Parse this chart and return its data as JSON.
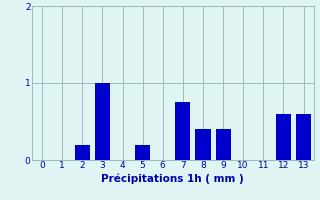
{
  "x_values": [
    0,
    1,
    2,
    3,
    4,
    5,
    6,
    7,
    8,
    9,
    10,
    11,
    12,
    13
  ],
  "bar_heights": [
    0,
    0,
    0.2,
    1.0,
    0,
    0.2,
    0,
    0.75,
    0.4,
    0.4,
    0,
    0,
    0.6,
    0.6
  ],
  "bar_color": "#0000cc",
  "background_color": "#e0f4f4",
  "grid_color": "#99bbbb",
  "xlabel": "Précipitations 1h ( mm )",
  "xlabel_color": "#0000aa",
  "tick_color": "#0000aa",
  "ylim": [
    0,
    2
  ],
  "yticks": [
    0,
    1,
    2
  ],
  "xlim": [
    -0.5,
    13.5
  ],
  "bar_width": 0.75,
  "figsize": [
    3.2,
    2.0
  ],
  "dpi": 100,
  "tick_fontsize": 6.5,
  "xlabel_fontsize": 7.5
}
